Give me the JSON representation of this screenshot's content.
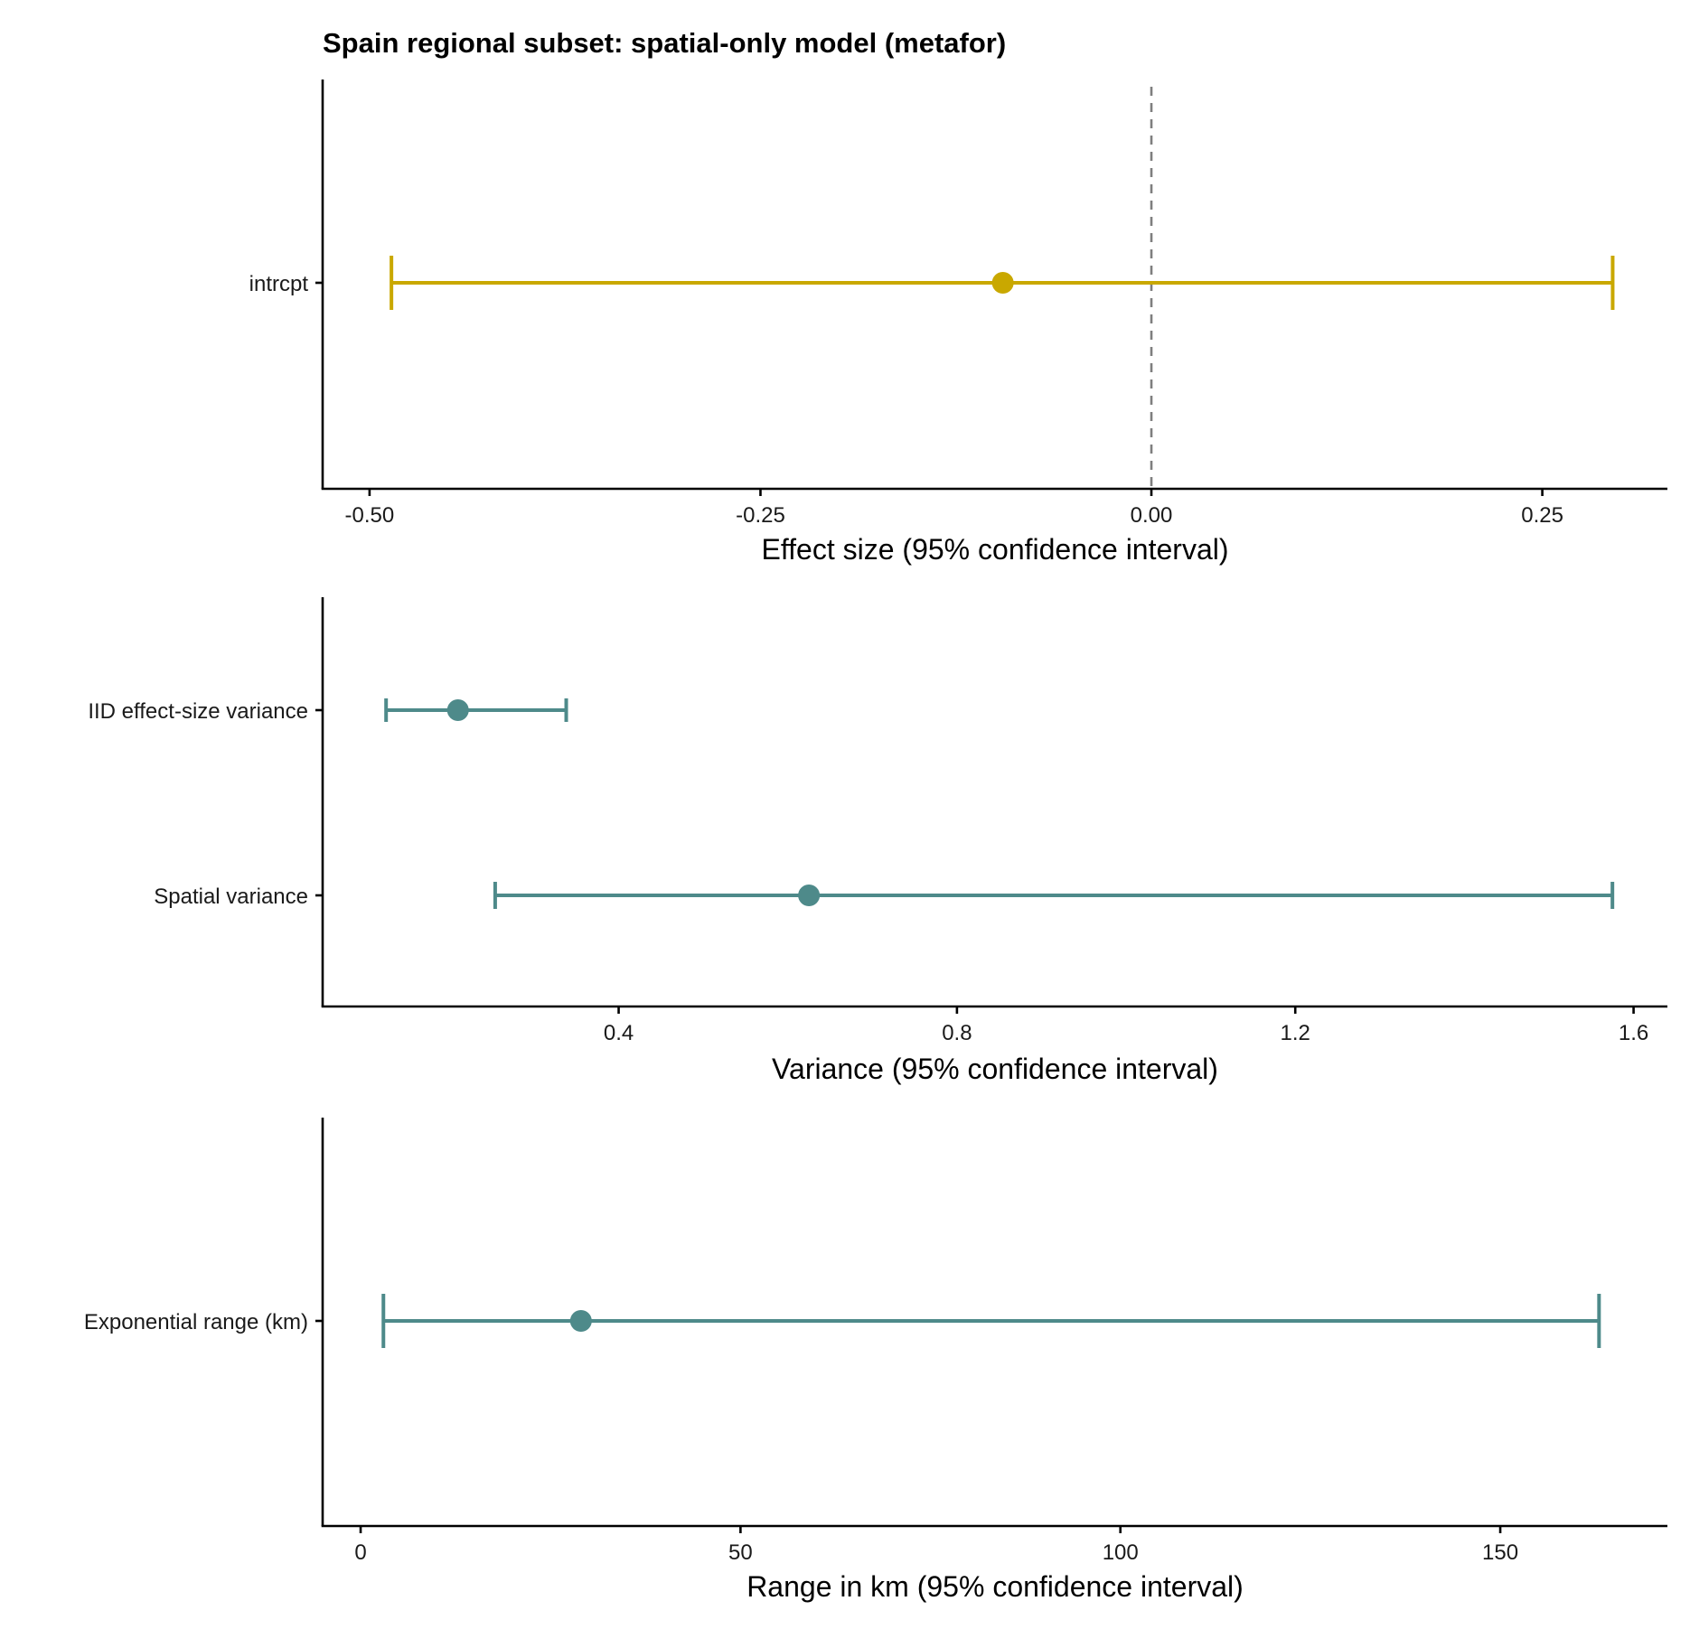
{
  "title": "Spain regional subset: spatial-only model (metafor)",
  "colors": {
    "effect": "#C9A800",
    "variance": "#4E8A8A",
    "reference_line": "#7F7F7F",
    "axis": "#000000"
  },
  "chart_data": [
    {
      "type": "scatter",
      "subtype": "forest-plot",
      "xlabel": "Effect size (95% confidence interval)",
      "xlim": [
        -0.53,
        0.33
      ],
      "x_ticks": [
        -0.5,
        -0.25,
        0.0,
        0.25
      ],
      "x_tick_labels": [
        "-0.50",
        "-0.25",
        "0.00",
        "0.25"
      ],
      "reference_line": {
        "x": 0,
        "style": "dashed"
      },
      "color": "effect",
      "rows": [
        {
          "label": "intrcpt",
          "estimate": -0.095,
          "lower": -0.486,
          "upper": 0.295
        }
      ]
    },
    {
      "type": "scatter",
      "subtype": "forest-plot",
      "xlabel": "Variance (95% confidence interval)",
      "xlim": [
        0.05,
        1.64
      ],
      "x_ticks": [
        0.4,
        0.8,
        1.2,
        1.6
      ],
      "x_tick_labels": [
        "0.4",
        "0.8",
        "1.2",
        "1.6"
      ],
      "color": "variance",
      "rows": [
        {
          "label": "IID effect-size variance",
          "estimate": 0.21,
          "lower": 0.125,
          "upper": 0.338
        },
        {
          "label": "Spatial variance",
          "estimate": 0.625,
          "lower": 0.254,
          "upper": 1.575
        }
      ]
    },
    {
      "type": "scatter",
      "subtype": "forest-plot",
      "xlabel": "Range in km (95% confidence interval)",
      "xlim": [
        -5,
        172
      ],
      "x_ticks": [
        0,
        50,
        100,
        150
      ],
      "x_tick_labels": [
        "0",
        "50",
        "100",
        "150"
      ],
      "color": "variance",
      "rows": [
        {
          "label": "Exponential range (km)",
          "estimate": 29,
          "lower": 3,
          "upper": 163
        }
      ]
    }
  ]
}
